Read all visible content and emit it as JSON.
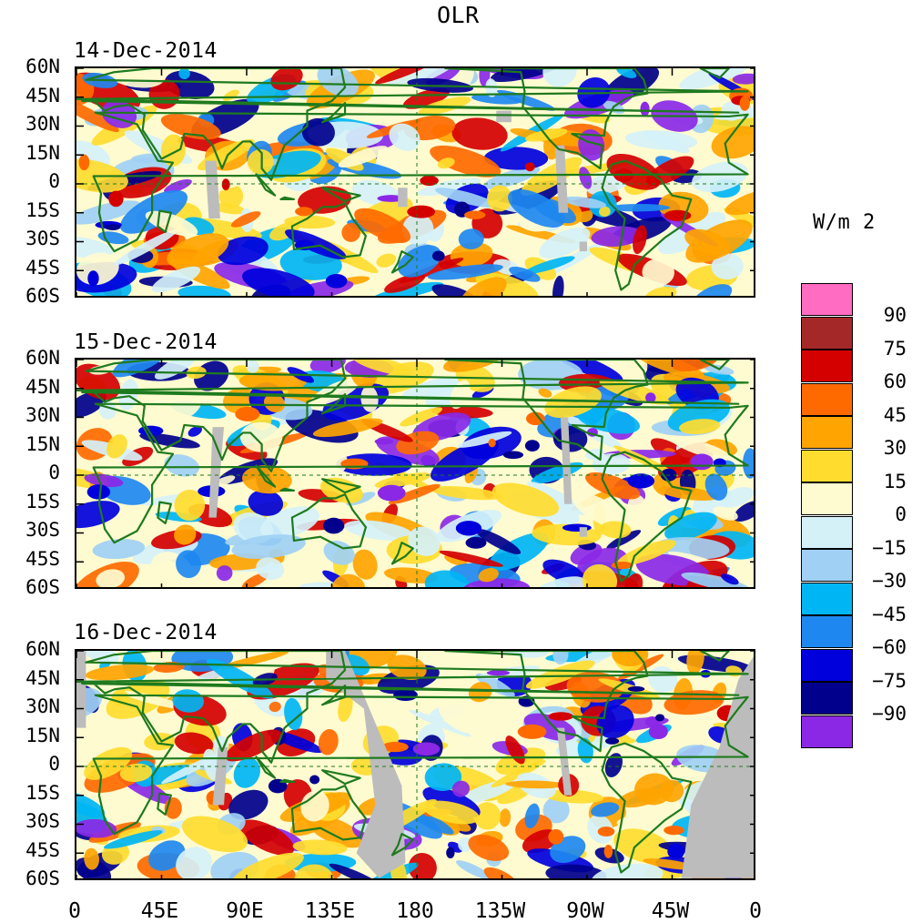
{
  "title": "OLR",
  "units": "W/m 2",
  "panels": [
    {
      "date": "14-Dec-2014"
    },
    {
      "date": "15-Dec-2014"
    },
    {
      "date": "16-Dec-2014"
    }
  ],
  "lat_labels": [
    "60N",
    "45N",
    "30N",
    "15N",
    "0",
    "15S",
    "30S",
    "45S",
    "60S"
  ],
  "lon_labels": [
    "0",
    "45E",
    "90E",
    "135E",
    "180",
    "135W",
    "90W",
    "45W",
    "0"
  ],
  "colorbar": {
    "labels": [
      "90",
      "75",
      "60",
      "45",
      "30",
      "15",
      "0",
      "−15",
      "−30",
      "−45",
      "−60",
      "−75",
      "−90"
    ],
    "colors": [
      "#ff6cc1",
      "#a52828",
      "#d40000",
      "#ff6a00",
      "#ffa400",
      "#ffdc2e",
      "#fffbd0",
      "#d5f1f8",
      "#a0d0f4",
      "#00b5f4",
      "#1e88f0",
      "#0000dc",
      "#00008c",
      "#8a28e6"
    ]
  },
  "map_colors": {
    "land": "#1e7a1e",
    "missing": "#bcbcbc"
  }
}
